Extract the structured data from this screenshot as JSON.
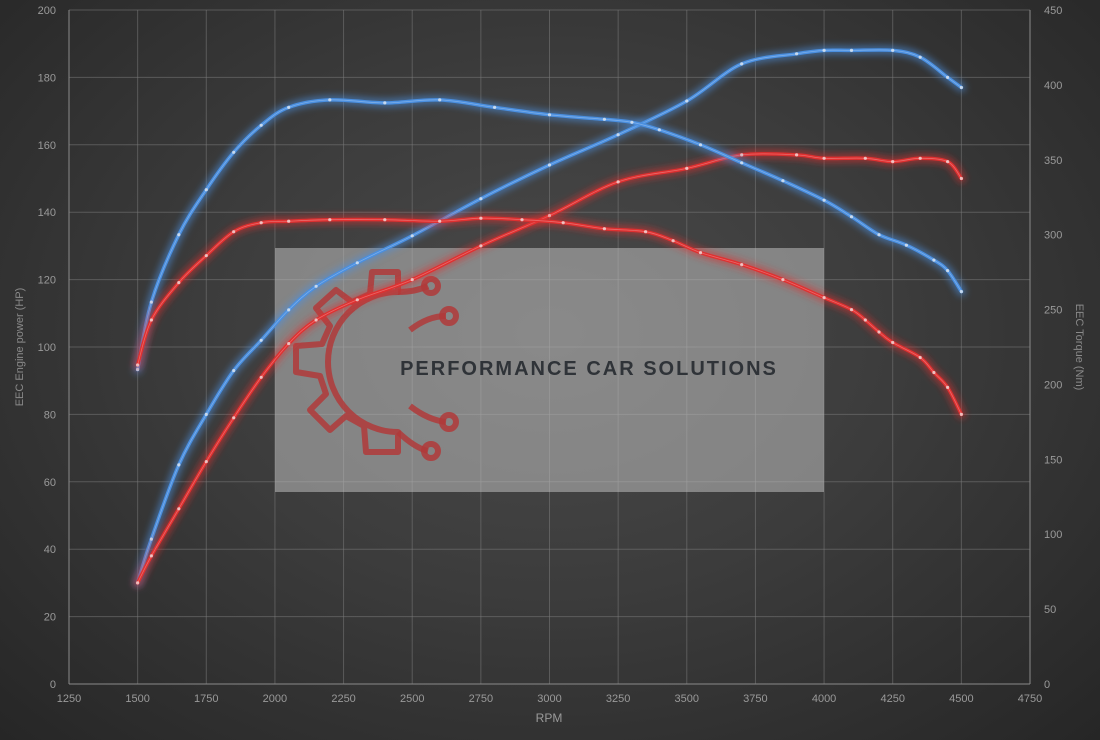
{
  "chart_data": {
    "type": "line",
    "x_axis": {
      "label": "RPM",
      "range": [
        1250,
        4750
      ],
      "ticks": [
        1250,
        1500,
        1750,
        2000,
        2250,
        2500,
        2750,
        3000,
        3250,
        3500,
        3750,
        4000,
        4250,
        4500,
        4750
      ]
    },
    "y_axis_left": {
      "label": "EEC Engine power (HP)",
      "range": [
        0,
        200
      ],
      "ticks": [
        0,
        20,
        40,
        60,
        80,
        100,
        120,
        140,
        160,
        180,
        200
      ]
    },
    "y_axis_right": {
      "label": "EEC Torque (Nm)",
      "range": [
        0,
        450
      ],
      "ticks": [
        0,
        50,
        100,
        150,
        200,
        250,
        300,
        350,
        400,
        450
      ]
    },
    "grid": true,
    "colors": {
      "tuned": "#4a8fe0",
      "stock": "#e03030"
    },
    "series": [
      {
        "kind": "power",
        "variant": "tuned",
        "axis": "left",
        "x": [
          1500,
          1550,
          1650,
          1750,
          1850,
          1950,
          2050,
          2150,
          2300,
          2500,
          2750,
          3000,
          3250,
          3500,
          3700,
          3900,
          4000,
          4100,
          4250,
          4350,
          4450,
          4500
        ],
        "y": [
          30,
          43,
          65,
          80,
          93,
          102,
          111,
          118,
          125,
          133,
          144,
          154,
          163,
          173,
          184,
          187,
          188,
          188,
          188,
          186,
          180,
          177
        ]
      },
      {
        "kind": "power",
        "variant": "stock",
        "axis": "left",
        "x": [
          1500,
          1550,
          1650,
          1750,
          1850,
          1950,
          2050,
          2150,
          2300,
          2500,
          2750,
          3000,
          3250,
          3500,
          3700,
          3900,
          4000,
          4150,
          4250,
          4350,
          4450,
          4500
        ],
        "y": [
          30,
          38,
          52,
          66,
          79,
          91,
          101,
          108,
          114,
          120,
          130,
          139,
          149,
          153,
          157,
          157,
          156,
          156,
          155,
          156,
          155,
          150
        ]
      },
      {
        "kind": "torque",
        "variant": "tuned",
        "axis": "right",
        "x": [
          1500,
          1550,
          1650,
          1750,
          1850,
          1950,
          2050,
          2200,
          2400,
          2600,
          2800,
          3000,
          3200,
          3300,
          3400,
          3550,
          3700,
          3850,
          4000,
          4100,
          4200,
          4300,
          4400,
          4450,
          4500
        ],
        "y": [
          210,
          255,
          300,
          330,
          355,
          373,
          385,
          390,
          388,
          390,
          385,
          380,
          377,
          375,
          370,
          360,
          348,
          336,
          323,
          312,
          300,
          293,
          283,
          276,
          262
        ]
      },
      {
        "kind": "torque",
        "variant": "stock",
        "axis": "right",
        "x": [
          1500,
          1550,
          1650,
          1750,
          1850,
          1950,
          2050,
          2200,
          2400,
          2600,
          2750,
          2900,
          3050,
          3200,
          3350,
          3450,
          3550,
          3700,
          3850,
          4000,
          4100,
          4150,
          4200,
          4250,
          4350,
          4400,
          4450,
          4500
        ],
        "y": [
          213,
          243,
          268,
          286,
          302,
          308,
          309,
          310,
          310,
          309,
          311,
          310,
          308,
          304,
          302,
          296,
          288,
          280,
          270,
          258,
          250,
          243,
          235,
          228,
          218,
          208,
          198,
          180
        ]
      }
    ],
    "watermark": "PERFORMANCE CAR SOLUTIONS"
  }
}
